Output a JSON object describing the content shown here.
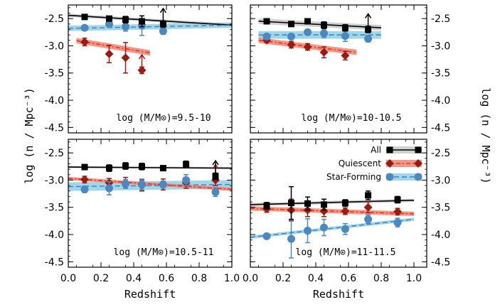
{
  "chart_data": {
    "type": "scatter",
    "xlabel": "Redshift",
    "ylabel_left": "log (n / Mpc⁻³)",
    "ylabel_right": "log (n / Mpc⁻³)",
    "xlim": [
      0.0,
      1.0
    ],
    "ylim": [
      -4.6,
      -2.25
    ],
    "x_ticks": [
      0.0,
      0.2,
      0.4,
      0.6,
      0.8,
      1.0
    ],
    "x_tick_labels": [
      "0.0",
      "0.2",
      "0.4",
      "0.6",
      "0.8",
      "1.0"
    ],
    "y_ticks": [
      -2.5,
      -3.0,
      -3.5,
      -4.0,
      -4.5
    ],
    "y_tick_labels": [
      "-2.5",
      "-3.0",
      "-3.5",
      "-4.0",
      "-4.5"
    ],
    "legend": [
      {
        "key": "all",
        "label": "All"
      },
      {
        "key": "quiescent",
        "label": "Quiescent"
      },
      {
        "key": "star_forming",
        "label": "Star-Forming"
      }
    ],
    "colors": {
      "all": "#000000",
      "all_band": "#c8c8c8",
      "quiescent_line": "#e8341c",
      "quiescent_marker": "#9b1a12",
      "quiescent_band": "#f4826e",
      "star_forming_line": "#3a7fbf",
      "star_forming_marker": "#4a88c0",
      "star_forming_band": "#8fcfe4"
    },
    "panels": [
      {
        "label": "log (M/M⊙)=9.5-10",
        "series": {
          "all": {
            "points": [
              [
                0.1,
                -2.47,
                0.04
              ],
              [
                0.25,
                -2.5,
                0.04
              ],
              [
                0.35,
                -2.52,
                0.06
              ],
              [
                0.45,
                -2.55,
                0.1
              ],
              [
                0.58,
                -2.6,
                0.06,
                "limit"
              ]
            ],
            "fit": [
              -2.44,
              -2.62
            ],
            "band": 0.03
          },
          "star_forming": {
            "points": [
              [
                0.1,
                -2.67,
                0.04
              ],
              [
                0.25,
                -2.6,
                0.05
              ],
              [
                0.35,
                -2.65,
                0.08
              ],
              [
                0.45,
                -2.63,
                0.18
              ],
              [
                0.58,
                -2.73,
                0.06
              ]
            ],
            "fit": [
              -2.68,
              -2.62
            ],
            "band": 0.05
          },
          "quiescent": {
            "points": [
              [
                0.1,
                -2.93,
                0.07
              ],
              [
                0.25,
                -3.15,
                0.16
              ],
              [
                0.35,
                -3.22,
                0.28
              ],
              [
                0.45,
                -3.45,
                0.06,
                "limit"
              ]
            ],
            "fit": [
              -2.88,
              -3.38
            ],
            "band": 0.05,
            "fit_range": [
              0.05,
              0.5
            ]
          }
        }
      },
      {
        "label": "log (M/M⊙)=10-10.5",
        "series": {
          "all": {
            "points": [
              [
                0.1,
                -2.55,
                0.04
              ],
              [
                0.25,
                -2.6,
                0.04
              ],
              [
                0.35,
                -2.55,
                0.04
              ],
              [
                0.45,
                -2.62,
                0.06
              ],
              [
                0.58,
                -2.67,
                0.06
              ],
              [
                0.72,
                -2.7,
                0.06,
                "limit"
              ]
            ],
            "fit": [
              -2.54,
              -2.7
            ],
            "band": 0.05,
            "fit_range": [
              0.05,
              0.8
            ]
          },
          "star_forming": {
            "points": [
              [
                0.1,
                -2.83,
                0.04
              ],
              [
                0.25,
                -2.83,
                0.04
              ],
              [
                0.35,
                -2.75,
                0.04
              ],
              [
                0.45,
                -2.77,
                0.08
              ],
              [
                0.58,
                -2.82,
                0.1
              ],
              [
                0.72,
                -2.87,
                0.06
              ]
            ],
            "fit": [
              -2.8,
              -2.8
            ],
            "band": 0.07,
            "fit_range": [
              0.05,
              0.8
            ]
          },
          "quiescent": {
            "points": [
              [
                0.1,
                -2.9,
                0.04
              ],
              [
                0.25,
                -2.98,
                0.06
              ],
              [
                0.35,
                -3.02,
                0.06
              ],
              [
                0.45,
                -3.12,
                0.1
              ],
              [
                0.58,
                -3.18,
                0.08
              ]
            ],
            "fit": [
              -2.88,
              -3.25
            ],
            "band": 0.05,
            "fit_range": [
              0.05,
              0.65
            ]
          }
        }
      },
      {
        "label": "log (M/M⊙)=10.5-11",
        "series": {
          "all": {
            "points": [
              [
                0.1,
                -2.76,
                0.04
              ],
              [
                0.25,
                -2.78,
                0.06
              ],
              [
                0.35,
                -2.74,
                0.06
              ],
              [
                0.45,
                -2.75,
                0.06
              ],
              [
                0.58,
                -2.78,
                0.04
              ],
              [
                0.72,
                -2.71,
                0.06
              ],
              [
                0.9,
                -2.93,
                0.06,
                "limit"
              ]
            ],
            "fit": [
              -2.76,
              -2.78
            ],
            "band": 0.02
          },
          "star_forming": {
            "points": [
              [
                0.1,
                -3.17,
                0.06
              ],
              [
                0.25,
                -3.15,
                0.12
              ],
              [
                0.35,
                -3.07,
                0.08
              ],
              [
                0.45,
                -3.08,
                0.1
              ],
              [
                0.58,
                -3.08,
                0.06
              ],
              [
                0.72,
                -3.0,
                0.1
              ],
              [
                0.9,
                -3.22,
                0.08
              ]
            ],
            "fit": [
              -3.12,
              -3.08
            ],
            "band": 0.08
          },
          "quiescent": {
            "points": [
              [
                0.1,
                -2.99,
                0.06
              ],
              [
                0.25,
                -3.05,
                0.08
              ],
              [
                0.35,
                -3.05,
                0.1
              ],
              [
                0.45,
                -3.1,
                0.1
              ],
              [
                0.58,
                -3.08,
                0.1
              ],
              [
                0.72,
                -3.05,
                0.1
              ],
              [
                0.9,
                -3.0,
                0.1,
                "limit"
              ]
            ],
            "fit": [
              -2.97,
              -3.17
            ],
            "band": 0.03
          }
        }
      },
      {
        "label": "log (M/M⊙)=11-11.5",
        "series": {
          "all": {
            "points": [
              [
                0.1,
                -3.47,
                0.06
              ],
              [
                0.25,
                -3.42,
                0.3
              ],
              [
                0.35,
                -3.43,
                0.12
              ],
              [
                0.45,
                -3.45,
                0.1
              ],
              [
                0.58,
                -3.42,
                0.06
              ],
              [
                0.72,
                -3.28,
                0.08
              ],
              [
                0.9,
                -3.36,
                0.06
              ]
            ],
            "fit": [
              -3.45,
              -3.37
            ],
            "band": 0.03
          },
          "star_forming": {
            "points": [
              [
                0.1,
                -4.03,
                0.04
              ],
              [
                0.25,
                -4.08,
                0.35
              ],
              [
                0.35,
                -3.93,
                0.22
              ],
              [
                0.45,
                -3.87,
                0.15
              ],
              [
                0.58,
                -3.9,
                0.1
              ],
              [
                0.72,
                -3.72,
                0.08
              ],
              [
                0.9,
                -3.78,
                0.08
              ]
            ],
            "fit": [
              -4.05,
              -3.72
            ],
            "band": 0.03
          },
          "quiescent": {
            "points": [
              [
                0.1,
                -3.53,
                0.06
              ],
              [
                0.25,
                -3.55,
                0.2
              ],
              [
                0.35,
                -3.55,
                0.12
              ],
              [
                0.45,
                -3.57,
                0.1
              ],
              [
                0.58,
                -3.57,
                0.06
              ],
              [
                0.72,
                -3.5,
                0.1
              ],
              [
                0.9,
                -3.58,
                0.06
              ]
            ],
            "fit": [
              -3.52,
              -3.62
            ],
            "band": 0.04
          }
        }
      }
    ]
  }
}
